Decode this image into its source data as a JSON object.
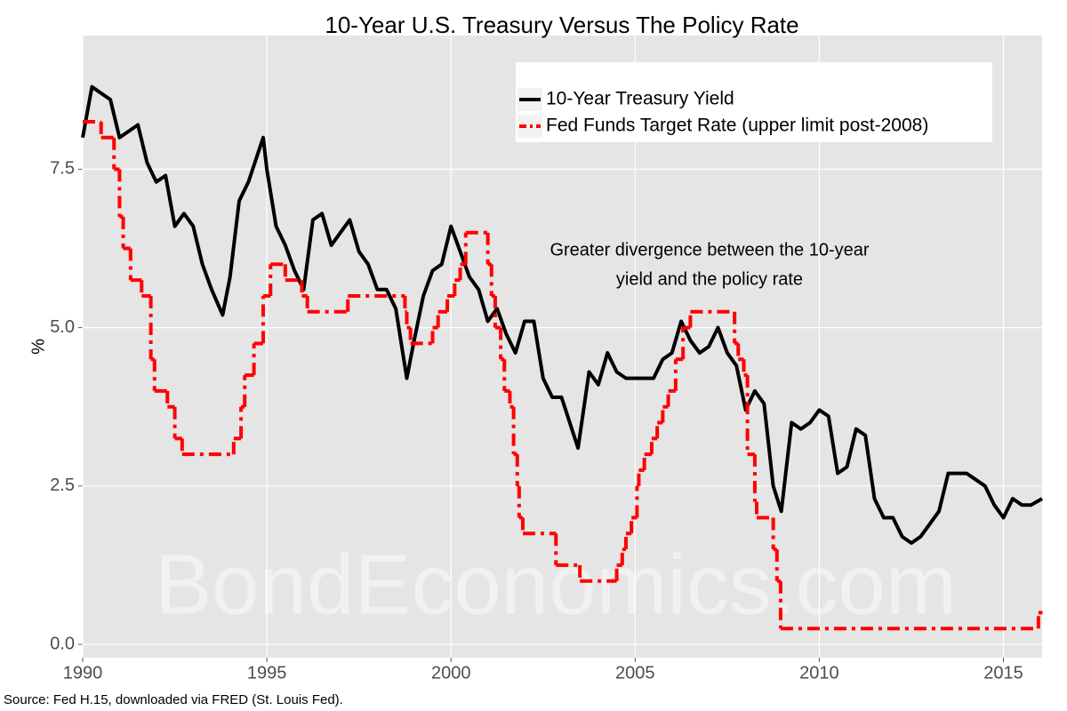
{
  "chart_data": {
    "type": "line",
    "title": "10-Year U.S. Treasury Versus The Policy Rate",
    "y_label": "%",
    "annotation": [
      "Greater divergence between the 10-year",
      "yield and the policy rate"
    ],
    "source": "Source: Fed H.15, downloaded via FRED (St. Louis Fed).",
    "watermark": "BondEconomics.com",
    "xlim": [
      1990,
      2016.05
    ],
    "xticks": [
      1990,
      1995,
      2000,
      2005,
      2010,
      2015
    ],
    "ylim": [
      -0.21,
      9.61
    ],
    "yticks": [
      {
        "value": 0,
        "label": "0.0"
      },
      2.5,
      {
        "value": 5,
        "label": "5.0"
      },
      7.5
    ],
    "grid": true,
    "legend": "top-right",
    "series": [
      {
        "name": "10-Year Treasury Yield",
        "color": "#000000",
        "style": "solid",
        "x": [
          1990,
          1990.25,
          1990.5,
          1990.75,
          1991,
          1991.25,
          1991.5,
          1991.75,
          1992,
          1992.25,
          1992.5,
          1992.75,
          1993,
          1993.25,
          1993.5,
          1993.8,
          1994,
          1994.25,
          1994.5,
          1994.9,
          1995,
          1995.25,
          1995.5,
          1995.75,
          1996,
          1996.25,
          1996.5,
          1996.75,
          1997,
          1997.25,
          1997.5,
          1997.75,
          1998,
          1998.25,
          1998.5,
          1998.8,
          1999,
          1999.25,
          1999.5,
          1999.75,
          2000,
          2000.25,
          2000.5,
          2000.75,
          2001,
          2001.25,
          2001.5,
          2001.75,
          2002,
          2002.25,
          2002.5,
          2002.75,
          2003,
          2003.45,
          2003.75,
          2004,
          2004.25,
          2004.5,
          2004.75,
          2005,
          2005.25,
          2005.5,
          2005.75,
          2006,
          2006.25,
          2006.5,
          2006.75,
          2007,
          2007.25,
          2007.5,
          2007.75,
          2008,
          2008.25,
          2008.5,
          2008.75,
          2008.97,
          2009.25,
          2009.5,
          2009.75,
          2010,
          2010.25,
          2010.5,
          2010.75,
          2011,
          2011.25,
          2011.5,
          2011.75,
          2012,
          2012.25,
          2012.5,
          2012.75,
          2013,
          2013.25,
          2013.5,
          2013.75,
          2014,
          2014.25,
          2014.5,
          2014.75,
          2015,
          2015.25,
          2015.5,
          2015.75,
          2016.05
        ],
        "values": [
          8.0,
          8.8,
          8.7,
          8.6,
          8.0,
          8.1,
          8.2,
          7.6,
          7.3,
          7.4,
          6.6,
          6.8,
          6.6,
          6.0,
          5.6,
          5.2,
          5.8,
          7.0,
          7.3,
          8.0,
          7.5,
          6.6,
          6.3,
          5.9,
          5.6,
          6.7,
          6.8,
          6.3,
          6.5,
          6.7,
          6.2,
          6.0,
          5.6,
          5.6,
          5.3,
          4.2,
          4.8,
          5.5,
          5.9,
          6.0,
          6.6,
          6.2,
          5.8,
          5.6,
          5.1,
          5.3,
          4.9,
          4.6,
          5.1,
          5.1,
          4.2,
          3.9,
          3.9,
          3.1,
          4.3,
          4.1,
          4.6,
          4.3,
          4.2,
          4.2,
          4.2,
          4.2,
          4.5,
          4.6,
          5.1,
          4.8,
          4.6,
          4.7,
          5.0,
          4.6,
          4.4,
          3.7,
          4.0,
          3.8,
          2.5,
          2.1,
          3.5,
          3.4,
          3.5,
          3.7,
          3.6,
          2.7,
          2.8,
          3.4,
          3.3,
          2.3,
          2.0,
          2.0,
          1.7,
          1.6,
          1.7,
          1.9,
          2.1,
          2.7,
          2.7,
          2.7,
          2.6,
          2.5,
          2.2,
          2.0,
          2.3,
          2.2,
          2.2,
          2.3
        ]
      },
      {
        "name": "Fed Funds Target Rate (upper limit post-2008)",
        "color": "#ff0000",
        "style": "dashdot",
        "step": "post",
        "x": [
          1990,
          1990.5,
          1990.85,
          1991,
          1991.1,
          1991.3,
          1991.6,
          1991.85,
          1991.95,
          1992.3,
          1992.5,
          1992.7,
          1994.1,
          1994.3,
          1994.4,
          1994.65,
          1994.9,
          1995.1,
          1995.5,
          1995.95,
          1996.1,
          1997.2,
          1998.75,
          1998.8,
          1998.9,
          1999.5,
          1999.65,
          1999.9,
          2000.1,
          2000.25,
          2000.4,
          2001.0,
          2001.1,
          2001.2,
          2001.35,
          2001.45,
          2001.6,
          2001.7,
          2001.8,
          2001.85,
          2001.95,
          2002.85,
          2003.5,
          2004.5,
          2004.65,
          2004.75,
          2004.9,
          2005.05,
          2005.1,
          2005.25,
          2005.45,
          2005.6,
          2005.75,
          2005.9,
          2006.1,
          2006.3,
          2006.5,
          2007.7,
          2007.8,
          2007.95,
          2008.05,
          2008.25,
          2008.3,
          2008.75,
          2008.85,
          2008.95,
          2015.95,
          2016.05
        ],
        "values": [
          8.25,
          8.0,
          7.5,
          6.75,
          6.25,
          5.75,
          5.5,
          4.5,
          4.0,
          3.75,
          3.25,
          3.0,
          3.25,
          3.75,
          4.25,
          4.75,
          5.5,
          6.0,
          5.75,
          5.5,
          5.25,
          5.5,
          5.25,
          5.0,
          4.75,
          5.0,
          5.25,
          5.5,
          5.75,
          6.0,
          6.5,
          6.0,
          5.5,
          5.0,
          4.5,
          4.0,
          3.75,
          3.0,
          2.5,
          2.0,
          1.75,
          1.25,
          1.0,
          1.25,
          1.5,
          1.75,
          2.0,
          2.5,
          2.75,
          3.0,
          3.25,
          3.5,
          3.75,
          4.0,
          4.5,
          5.0,
          5.25,
          4.75,
          4.5,
          4.25,
          3.0,
          2.25,
          2.0,
          1.5,
          1.0,
          0.25,
          0.5,
          0.5
        ]
      }
    ]
  }
}
